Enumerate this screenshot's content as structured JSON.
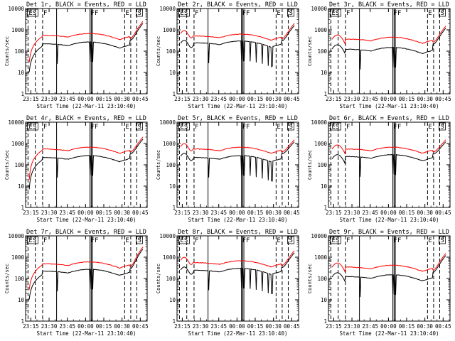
{
  "chart_data": {
    "type": "line",
    "layout": "3x3 grid",
    "series_colors": {
      "events": "#000000",
      "lld": "#ff0000"
    },
    "common": {
      "ylabel": "Counts/sec",
      "xlabel": "Start Time (22-Mar-11 23:10:40)",
      "x_ticks": [
        "23:15",
        "23:30",
        "23:45",
        "00:00",
        "00:15",
        "00:30",
        "00:45"
      ],
      "x_tick_minutes": [
        4.3333,
        19.3333,
        34.3333,
        49.3333,
        64.3333,
        79.3333,
        94.3333
      ],
      "xlim_minutes": [
        0,
        100
      ],
      "y_scale": "log",
      "ylim": [
        1,
        10000
      ],
      "y_ticks": [
        1,
        10,
        100,
        1000,
        10000
      ],
      "y_tick_labels": [
        "1",
        "10",
        "100",
        "1000",
        "10000"
      ],
      "vertical_lines": [
        {
          "t": 2.0,
          "style": "dashed",
          "label": "ES",
          "label_style": "box"
        },
        {
          "t": 8.0,
          "style": "dashed",
          "label": "",
          "label_style": ""
        },
        {
          "t": 14.0,
          "style": "dashed",
          "label": "F",
          "label_style": "plain"
        },
        {
          "t": 25.5,
          "style": "solid",
          "label": "",
          "label_style": ""
        },
        {
          "t": 53.0,
          "style": "solid",
          "label": "FF",
          "label_style": "plain"
        },
        {
          "t": 55.0,
          "style": "solid",
          "label": "",
          "label_style": ""
        },
        {
          "t": 81.5,
          "style": "dashed",
          "label": "E",
          "label_style": "plain"
        },
        {
          "t": 86.5,
          "style": "dashed",
          "label": "",
          "label_style": ""
        },
        {
          "t": 91.5,
          "style": "dashed",
          "label": "S",
          "label_style": "box"
        }
      ]
    },
    "panels": [
      {
        "title": "Det 1r, BLACK = Events, RED = LLD",
        "events_base": 180,
        "lld_base": 450,
        "start_level": 30,
        "end_level": 2500,
        "variant": "a"
      },
      {
        "title": "Det 2r, BLACK = Events, RED = LLD",
        "events_base": 200,
        "lld_base": 420,
        "start_level": 250,
        "end_level": 2000,
        "variant": "b"
      },
      {
        "title": "Det 3r, BLACK = Events, RED = LLD",
        "events_base": 100,
        "lld_base": 300,
        "start_level": 200,
        "end_level": 1500,
        "variant": "c"
      },
      {
        "title": "Det 4r, BLACK = Events, RED = LLD",
        "events_base": 180,
        "lld_base": 450,
        "start_level": 20,
        "end_level": 2000,
        "variant": "a"
      },
      {
        "title": "Det 5r, BLACK = Events, RED = LLD",
        "events_base": 180,
        "lld_base": 450,
        "start_level": 250,
        "end_level": 1500,
        "variant": "b"
      },
      {
        "title": "Det 6r, BLACK = Events, RED = LLD",
        "events_base": 200,
        "lld_base": 450,
        "start_level": 200,
        "end_level": 1500,
        "variant": "c"
      },
      {
        "title": "Det 7r, BLACK = Events, RED = LLD",
        "events_base": 180,
        "lld_base": 400,
        "start_level": 30,
        "end_level": 3000,
        "variant": "a"
      },
      {
        "title": "Det 8r, BLACK = Events, RED = LLD",
        "events_base": 200,
        "lld_base": 450,
        "start_level": 250,
        "end_level": 2000,
        "variant": "b"
      },
      {
        "title": "Det 9r, BLACK = Events, RED = LLD",
        "events_base": 100,
        "lld_base": 280,
        "start_level": 200,
        "end_level": 1500,
        "variant": "c"
      }
    ]
  }
}
